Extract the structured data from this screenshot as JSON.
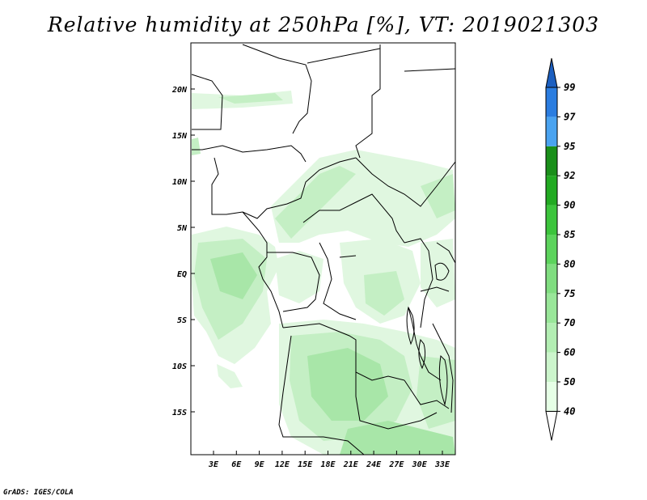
{
  "title": "Relative humidity at 250hPa [%], VT: 2019021303",
  "credit": "GrADS: IGES/COLA",
  "map": {
    "lat_labels": [
      "20N",
      "15N",
      "10N",
      "5N",
      "EQ",
      "5S",
      "10S",
      "15S"
    ],
    "lon_labels": [
      "3E",
      "6E",
      "9E",
      "12E",
      "15E",
      "18E",
      "21E",
      "24E",
      "27E",
      "30E",
      "33E"
    ],
    "lat_values": [
      20,
      15,
      10,
      5,
      0,
      -5,
      -10,
      -15
    ],
    "lon_values": [
      3,
      6,
      9,
      12,
      15,
      18,
      21,
      24,
      27,
      30,
      33
    ]
  },
  "colorbar": {
    "levels": [
      "40",
      "50",
      "60",
      "70",
      "75",
      "80",
      "85",
      "90",
      "92",
      "95",
      "97",
      "99"
    ],
    "colors": [
      "#ffffff",
      "#e6ffe6",
      "#ccf5cc",
      "#b3eeb3",
      "#99e699",
      "#80dd80",
      "#5cd35c",
      "#3cc43c",
      "#22aa22",
      "#1a8f1a",
      "#4aa3f0",
      "#2b7de0",
      "#1c5fc0"
    ]
  },
  "fields": {
    "colors": {
      "light": "#e0f7e0",
      "mid": "#c4efc4",
      "strong": "#a8e6a8",
      "boundary": "#000000",
      "frame": "#000000"
    }
  }
}
